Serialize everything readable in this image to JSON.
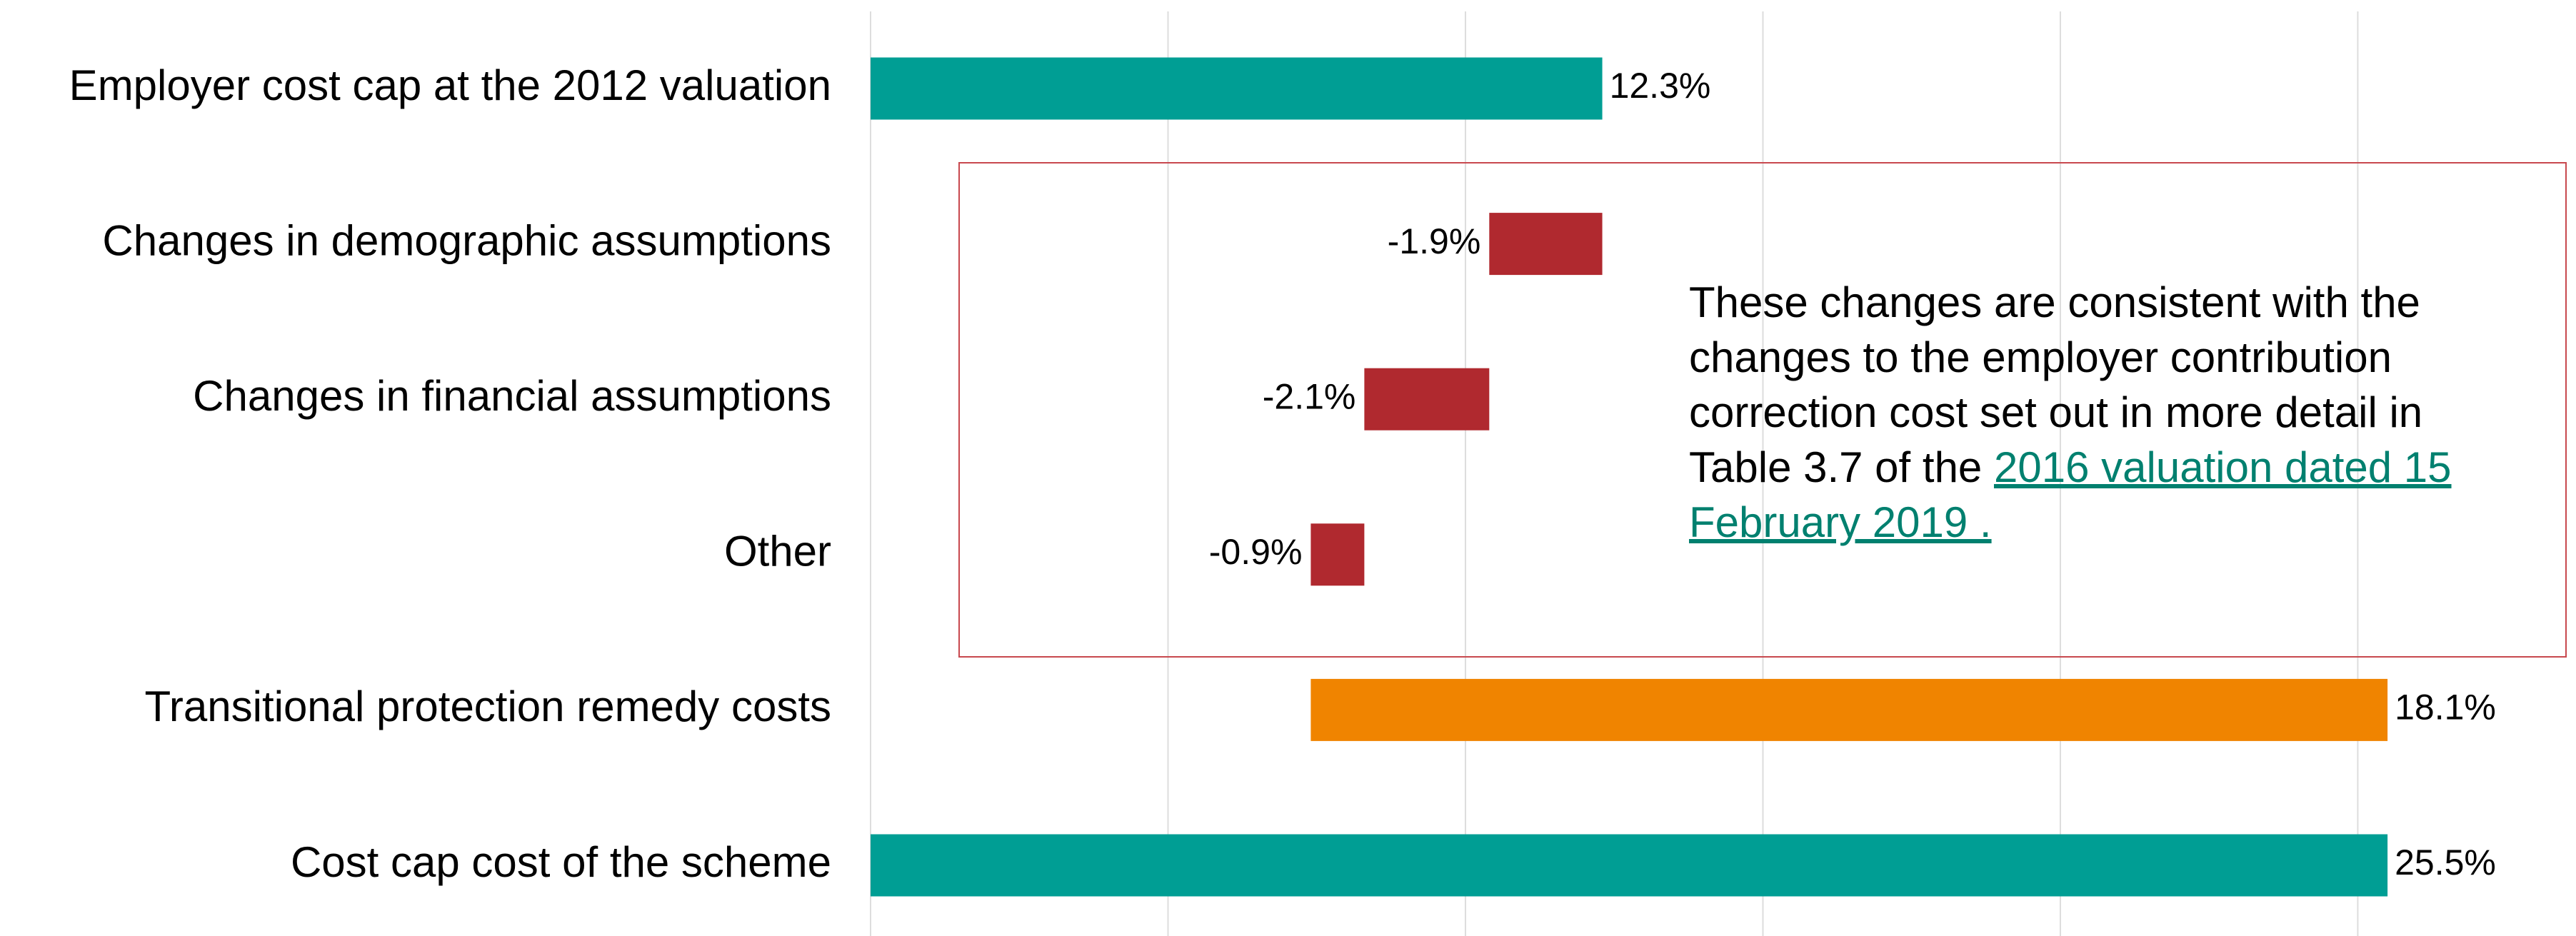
{
  "chart_data": {
    "type": "waterfall",
    "orientation": "horizontal",
    "categories": [
      "Employer cost cap at the 2012 valuation",
      "Changes in demographic assumptions",
      "Changes in financial assumptions",
      "Other",
      "Transitional protection remedy costs",
      "Cost cap cost of the scheme"
    ],
    "values": [
      12.3,
      -1.9,
      -2.1,
      -0.9,
      18.1,
      25.5
    ],
    "value_labels": [
      "12.3%",
      "-1.9%",
      "-2.1%",
      "-0.9%",
      "18.1%",
      "25.5%"
    ],
    "measure": [
      "absolute",
      "relative",
      "relative",
      "relative",
      "relative",
      "total"
    ],
    "colors": [
      "#009e94",
      "#b0292f",
      "#b0292f",
      "#b0292f",
      "#f08400",
      "#009e94"
    ],
    "xlim": [
      0,
      28.5
    ],
    "xticks": [
      0,
      5,
      10,
      15,
      20,
      25
    ],
    "grid": true,
    "annotation": {
      "text": "These changes are consistent with the changes to the employer contribution correction cost set out in more detail in Table 3.7 of the ",
      "link": "2016 valuation dated 15 February 2019 ."
    }
  }
}
